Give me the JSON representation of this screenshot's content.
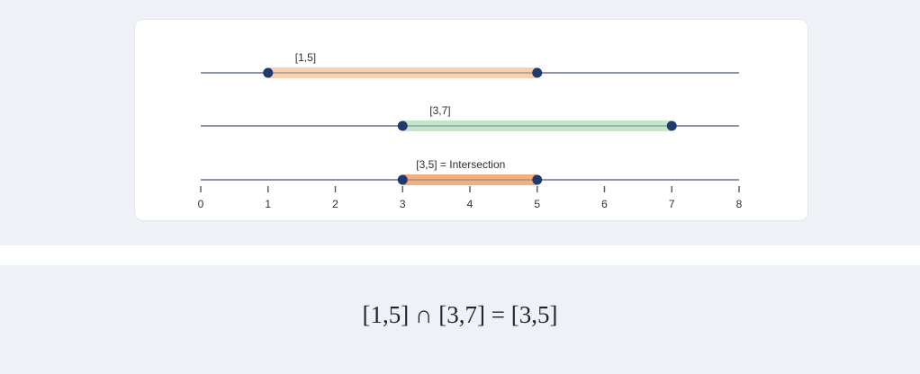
{
  "chart_data": {
    "type": "interval",
    "series": [
      {
        "name": "[1,5]",
        "color": "#f8caa5",
        "values": [
          1,
          5
        ]
      },
      {
        "name": "[3,7]",
        "color": "#b9e5c2",
        "values": [
          3,
          7
        ]
      },
      {
        "name": "[3,5] = Intersection",
        "color": "#f3a56e",
        "values": [
          3,
          5
        ]
      }
    ],
    "xlim": [
      0,
      8
    ],
    "xticks": [
      0,
      1,
      2,
      3,
      4,
      5,
      6,
      7,
      8
    ]
  },
  "formula": "[1,5] ∩ [3,7] = [3,5]"
}
